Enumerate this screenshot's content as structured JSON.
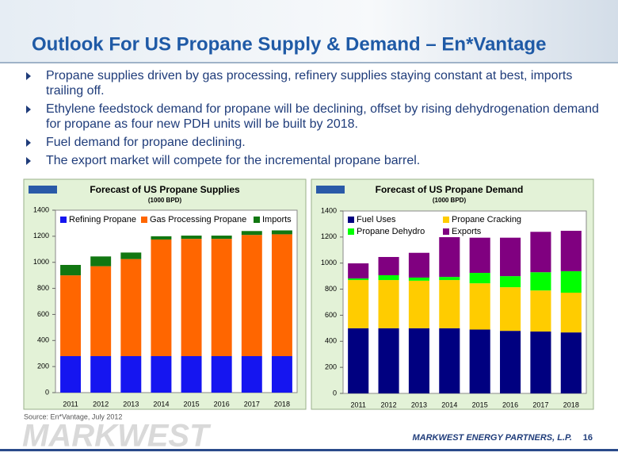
{
  "title": "Outlook For US Propane Supply & Demand – En*Vantage",
  "bullets": [
    "Propane supplies driven by gas processing, refinery supplies staying constant at best, imports trailing off.",
    "Ethylene feedstock demand for propane will be declining, offset by rising dehydrogenation demand for propane as four new PDH units will be built by 2018.",
    "Fuel demand for propane declining.",
    "The export market will compete for the incremental propane barrel."
  ],
  "source": "Source: En*Vantage, July 2012",
  "footer": "MARKWEST ENERGY PARTNERS, L.P.",
  "watermark": "MARKWEST",
  "page_number": "16",
  "chart_data": [
    {
      "type": "stacked-bar",
      "title": "Forecast of US Propane Supplies",
      "subtitle": "(1000 BPD)",
      "categories": [
        "2011",
        "2012",
        "2013",
        "2014",
        "2015",
        "2016",
        "2017",
        "2018"
      ],
      "ylim": [
        0,
        1400
      ],
      "yticks": [
        0,
        200,
        400,
        600,
        800,
        1000,
        1200,
        1400
      ],
      "series": [
        {
          "name": "Refining Propane",
          "color": "#1515f0",
          "values": [
            280,
            280,
            280,
            280,
            280,
            280,
            280,
            280
          ]
        },
        {
          "name": "Gas Processing Propane",
          "color": "#ff6600",
          "values": [
            620,
            690,
            745,
            895,
            900,
            900,
            930,
            935
          ]
        },
        {
          "name": "Imports",
          "color": "#117711",
          "values": [
            80,
            75,
            50,
            25,
            25,
            25,
            30,
            30
          ]
        }
      ]
    },
    {
      "type": "stacked-bar",
      "title": "Forecast of US Propane Demand",
      "subtitle": "(1000 BPD)",
      "categories": [
        "2011",
        "2012",
        "2013",
        "2014",
        "2015",
        "2016",
        "2017",
        "2018"
      ],
      "ylim": [
        0,
        1400
      ],
      "yticks": [
        0,
        200,
        400,
        600,
        800,
        1000,
        1200,
        1400
      ],
      "series": [
        {
          "name": "Fuel Uses",
          "color": "#000080",
          "values": [
            500,
            500,
            500,
            500,
            490,
            480,
            475,
            468
          ]
        },
        {
          "name": "Propane Cracking",
          "color": "#ffcc00",
          "values": [
            370,
            370,
            365,
            370,
            355,
            335,
            315,
            305
          ]
        },
        {
          "name": "Propane Dehydro",
          "color": "#00ff00",
          "values": [
            12,
            37,
            24,
            24,
            80,
            85,
            140,
            165
          ]
        },
        {
          "name": "Exports",
          "color": "#800080",
          "values": [
            116,
            140,
            190,
            305,
            270,
            295,
            310,
            310
          ]
        }
      ]
    }
  ]
}
